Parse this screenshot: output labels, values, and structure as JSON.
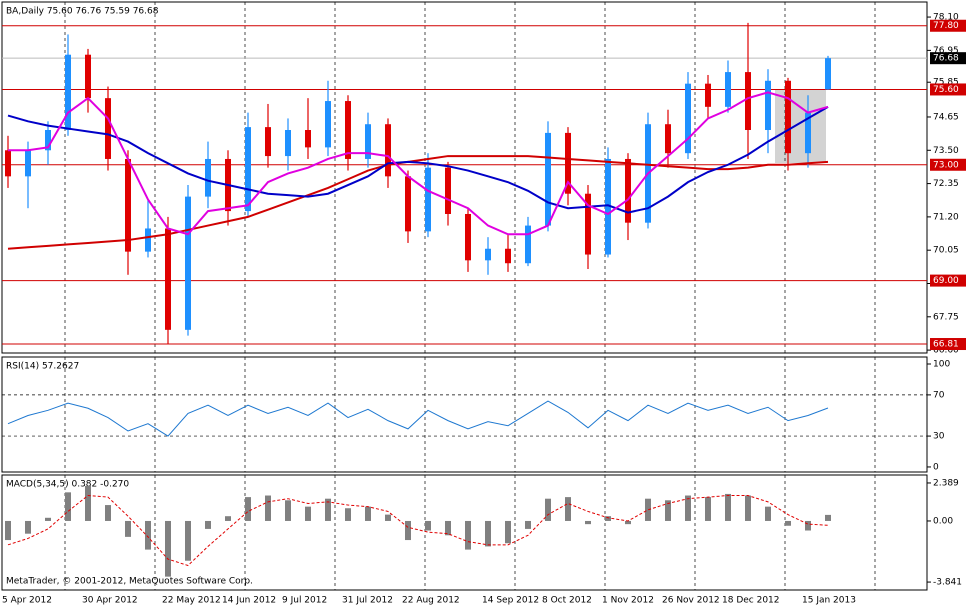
{
  "chart_data": [
    {
      "type": "candlestick",
      "title": "BA,Daily  75.60 76.76 75.59 76.68",
      "categories": [
        "5 Apr 2012",
        null,
        null,
        null,
        "30 Apr 2012",
        null,
        null,
        null,
        "22 May 2012",
        null,
        null,
        "14 Jun 2012",
        null,
        null,
        "9 Jul 2012",
        null,
        null,
        "31 Jul 2012",
        null,
        null,
        "22 Aug 2012",
        null,
        null,
        null,
        "14 Sep 2012",
        null,
        null,
        "8 Oct 2012",
        null,
        null,
        "1 Nov 2012",
        null,
        null,
        "26 Nov 2012",
        null,
        null,
        "18 Dec 2012",
        null,
        null,
        null,
        "15 Jan 2013",
        null
      ],
      "open": [
        73.5,
        72.6,
        73.5,
        74.2,
        76.8,
        75.3,
        73.2,
        70,
        70.8,
        67.3,
        71.9,
        73.2,
        71.4,
        74.3,
        73.3,
        74.2,
        73.6,
        75.2,
        73.2,
        74.4,
        72.6,
        70.7,
        72.9,
        71.3,
        69.7,
        70.1,
        69.6,
        70.9,
        74.1,
        72,
        69.9,
        73.2,
        71,
        74.4,
        73.4,
        75.8,
        75,
        76.2,
        74.2,
        75.9,
        73.4,
        75.6
      ],
      "high": [
        74,
        73.8,
        74.5,
        77.5,
        77,
        75.7,
        73.5,
        71.8,
        71.2,
        72.3,
        73.8,
        73.5,
        74.8,
        75.1,
        74.6,
        75.3,
        75.9,
        75.4,
        74.8,
        74.6,
        72.8,
        73.4,
        73.1,
        71.5,
        70.5,
        70.6,
        71.2,
        74.5,
        74.3,
        72.3,
        73.6,
        73.4,
        74.8,
        74.9,
        76.2,
        76.1,
        76.6,
        77.9,
        76.3,
        76,
        75.4,
        76.76
      ],
      "low": [
        72.2,
        71.5,
        73,
        74,
        74.8,
        72.8,
        69.2,
        69.8,
        66.8,
        67.1,
        71.5,
        70.9,
        71.2,
        72.9,
        72.8,
        73.2,
        73.3,
        72.8,
        72.9,
        72.2,
        70.3,
        70.5,
        70.9,
        69.3,
        69.2,
        69.3,
        69.5,
        70.7,
        71.6,
        69.4,
        69.8,
        70.4,
        70.8,
        72.9,
        73.2,
        74.6,
        74.8,
        73.2,
        73.4,
        72.8,
        72.9,
        75.59
      ],
      "close": [
        72.6,
        73.5,
        74.2,
        76.8,
        75.3,
        73.2,
        70,
        70.8,
        67.3,
        71.9,
        73.2,
        71.4,
        74.3,
        73.3,
        74.2,
        73.6,
        75.2,
        73.2,
        74.4,
        72.6,
        70.7,
        72.9,
        71.3,
        69.7,
        70.1,
        69.6,
        70.9,
        74.1,
        72,
        69.9,
        73.2,
        71,
        74.4,
        73.4,
        75.8,
        75,
        76.2,
        74.2,
        75.9,
        73.4,
        74.8,
        76.68
      ],
      "up_color": "#1e90ff",
      "down_color": "#e00000",
      "overlays": [
        {
          "color": "#d00000",
          "values": [
            70.1,
            70.15,
            70.2,
            70.25,
            70.3,
            70.35,
            70.4,
            70.5,
            70.6,
            70.75,
            70.9,
            71.05,
            71.2,
            71.45,
            71.7,
            71.95,
            72.2,
            72.5,
            72.8,
            73,
            73.1,
            73.2,
            73.3,
            73.3,
            73.3,
            73.3,
            73.3,
            73.25,
            73.2,
            73.15,
            73.1,
            73.05,
            73,
            72.95,
            72.9,
            72.85,
            72.85,
            72.9,
            73,
            73,
            73.05,
            73.1
          ]
        },
        {
          "color": "#0000c8",
          "values": [
            74.7,
            74.5,
            74.35,
            74.25,
            74.15,
            74.05,
            73.8,
            73.4,
            73.05,
            72.7,
            72.45,
            72.3,
            72.15,
            72,
            71.95,
            71.9,
            72,
            72.3,
            72.6,
            73.05,
            73.1,
            73.05,
            72.95,
            72.8,
            72.6,
            72.4,
            72.1,
            71.7,
            71.5,
            71.55,
            71.6,
            71.35,
            71.5,
            71.9,
            72.4,
            72.75,
            73,
            73.35,
            73.8,
            74.2,
            74.6,
            75
          ]
        },
        {
          "color": "#e000e0",
          "values": [
            73.5,
            73.5,
            73.6,
            74.8,
            75.3,
            74.6,
            73.2,
            71.8,
            70.8,
            70.6,
            71.4,
            71.5,
            71.6,
            72.4,
            72.7,
            72.9,
            73.2,
            73.4,
            73.4,
            73.3,
            72.6,
            72.1,
            71.8,
            71.5,
            70.9,
            70.6,
            70.6,
            70.9,
            72.4,
            71.6,
            71.3,
            71.8,
            72.7,
            73.3,
            73.9,
            74.6,
            74.9,
            75.3,
            75.5,
            75.3,
            74.8,
            75
          ]
        }
      ],
      "ylim": [
        66.5,
        78.62
      ],
      "yticks": [
        {
          "value": 78.1,
          "label": "78.10"
        },
        {
          "value": 76.95,
          "label": "76.95"
        },
        {
          "value": 75.85,
          "label": "75.85"
        },
        {
          "value": 74.65,
          "label": "74.65"
        },
        {
          "value": 73.5,
          "label": "73.50"
        },
        {
          "value": 72.35,
          "label": "72.35"
        },
        {
          "value": 71.2,
          "label": "71.20"
        },
        {
          "value": 70.05,
          "label": "70.05"
        },
        {
          "value": 68.9,
          "label": "68.90"
        },
        {
          "value": 67.75,
          "label": "67.75"
        },
        {
          "value": 66.6,
          "label": "66.60"
        }
      ],
      "levels": [
        {
          "value": 77.8,
          "label": "77.80"
        },
        {
          "value": 75.6,
          "label": "75.60"
        },
        {
          "value": 73,
          "label": "73.00"
        },
        {
          "value": 69,
          "label": "69.00"
        },
        {
          "value": 66.81,
          "label": "66.81"
        }
      ],
      "level_color": "#d00000",
      "last": {
        "value": 76.68,
        "label": "76.68"
      }
    },
    {
      "type": "line",
      "title": "RSI(14) 57.2627",
      "color": "#1e78d0",
      "values": [
        42,
        50,
        55,
        62,
        57,
        48,
        35,
        42,
        30,
        52,
        60,
        50,
        60,
        52,
        58,
        50,
        62,
        48,
        56,
        45,
        37,
        55,
        45,
        37,
        44,
        40,
        52,
        64,
        53,
        38,
        55,
        45,
        60,
        52,
        62,
        55,
        60,
        52,
        58,
        45,
        50,
        57.26
      ],
      "ylim": [
        -4.9,
        106.8
      ],
      "yticks": [
        100,
        70,
        30,
        0
      ],
      "levels": [
        70,
        30
      ]
    },
    {
      "type": "bar",
      "title": "MACD(5,34,5) 0.382 -0.270",
      "color": "#808080",
      "values": [
        -1.2,
        -0.8,
        0.2,
        1.8,
        2.2,
        1,
        -1,
        -1.8,
        -3.5,
        -2.5,
        -0.5,
        0.3,
        1.5,
        1.6,
        1.3,
        0.9,
        1.4,
        0.8,
        0.9,
        0.4,
        -1.2,
        -0.6,
        -0.9,
        -1.8,
        -1.6,
        -1.4,
        -0.5,
        1.4,
        1.5,
        -0.2,
        0.3,
        -0.2,
        1.4,
        1.3,
        1.6,
        1.5,
        1.7,
        1.6,
        0.9,
        -0.3,
        -0.6,
        0.382
      ],
      "signal": {
        "color": "#e00000",
        "values": [
          -1.5,
          -1.1,
          -0.5,
          0.6,
          1.6,
          1.5,
          0.3,
          -1,
          -2.4,
          -2.8,
          -1.6,
          -0.5,
          0.6,
          1.2,
          1.4,
          1.1,
          1.2,
          1,
          0.9,
          0.6,
          -0.4,
          -0.7,
          -0.8,
          -1.3,
          -1.5,
          -1.5,
          -0.9,
          0.4,
          1.1,
          0.6,
          0.2,
          0,
          0.7,
          1.1,
          1.4,
          1.5,
          1.6,
          1.6,
          1.2,
          0.4,
          -0.2,
          -0.27
        ]
      },
      "ylim": [
        -4.34,
        2.89
      ],
      "yticks": [
        2.389,
        {
          "value": 0,
          "label": "0.00"
        },
        -3.841
      ]
    }
  ],
  "footer": "MetaTrader, © 2001-2012, MetaQuotes Software Corp."
}
